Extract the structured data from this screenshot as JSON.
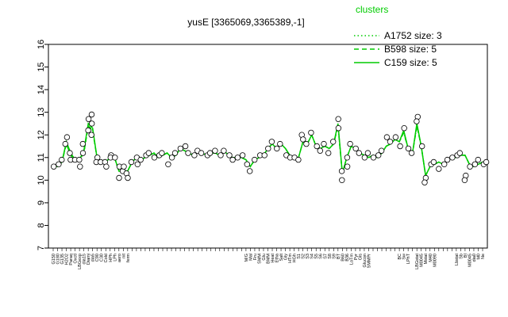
{
  "chart_data": {
    "type": "line",
    "title": "yusE [3365069,3365389,-1]",
    "xlabel": "",
    "ylabel": "",
    "ylim": [
      7,
      16
    ],
    "yticks": [
      7,
      8,
      9,
      10,
      11,
      12,
      13,
      14,
      15,
      16
    ],
    "grid": false,
    "legend": {
      "title": "clusters",
      "placement": "top-right",
      "color": "#00cc00",
      "entries": [
        {
          "label": "A1752 size: 3",
          "style": "dotted"
        },
        {
          "label": "B598 size: 5",
          "style": "dashed"
        },
        {
          "label": "C159 size: 5",
          "style": "solid"
        }
      ]
    },
    "x_tick_labels": [
      "G150",
      "G180",
      "G135",
      "H2O2",
      "Paraq",
      "Oxctl",
      "LBGexp",
      "dia15",
      "Diami",
      "dia5",
      "C90",
      "C30",
      "Cold",
      "HPh",
      "LPh",
      "aero",
      "nit",
      "ferm",
      "",
      "",
      "",
      "",
      "",
      "",
      "",
      "",
      "",
      "",
      "",
      "",
      "",
      "",
      "",
      "",
      "",
      "",
      "",
      "",
      "",
      "",
      "",
      "",
      "",
      "",
      "M/G",
      "Mal",
      "Fru",
      "SMM",
      "Glu",
      "BMM",
      "Heat",
      "Etha",
      "Salt",
      "Gly",
      "HTm",
      "HGh",
      "S1",
      "S2",
      "S3",
      "S4",
      "S5",
      "S6",
      "S7",
      "S8",
      "S9",
      "BT",
      "B60",
      "B36",
      "LoTm",
      "Pyr",
      "Gls",
      "Glucon",
      "SMMPr",
      "",
      "",
      "",
      "",
      "",
      "",
      "BC",
      "Sw",
      "LPhT",
      "",
      "LBGstat",
      "M0045",
      "Mstat",
      "M40",
      "M0090",
      "",
      "",
      "",
      "",
      "Lbstat",
      "Sb",
      "BI",
      "M0045",
      "dia0",
      "M0",
      "Ne"
    ],
    "series": [
      {
        "style": "solid",
        "color": "#00cc00",
        "values": [
          10.6,
          10.6,
          10.8,
          11.7,
          11.2,
          10.9,
          10.9,
          11.3,
          12.5,
          12.3,
          11.0,
          10.8,
          10.8,
          11.0,
          11.0,
          10.4,
          10.4,
          10.4,
          10.8,
          11.0,
          10.9,
          11.0,
          11.1,
          11.2,
          11.0,
          11.1,
          11.2,
          11.0,
          11.1,
          11.4,
          11.3,
          11.2,
          11.1,
          11.3,
          11.2,
          11.1,
          11.2,
          11.2,
          11.1,
          11.3,
          11.1,
          11.0,
          11.0,
          11.0,
          10.9,
          10.6,
          10.9,
          11.0,
          11.1,
          11.4,
          11.6,
          11.4,
          11.6,
          11.4,
          11.1,
          11.0,
          11.0,
          11.7,
          11.6,
          12.0,
          11.5,
          11.4,
          11.5,
          11.4,
          11.6,
          12.5,
          10.3,
          11.0,
          11.5,
          11.4,
          11.2,
          11.1,
          11.0,
          11.1,
          11.0,
          11.2,
          11.5,
          11.6,
          11.8,
          11.7,
          12.2,
          11.4,
          11.2,
          12.5,
          11.5,
          10.2,
          10.6,
          10.7,
          10.8,
          10.7,
          10.9,
          11.0,
          11.0,
          11.1,
          11.1,
          10.7,
          10.6,
          10.7,
          10.8,
          10.8
        ]
      },
      {
        "style": "dashed",
        "color": "#00cc00",
        "values": [
          10.6,
          10.6,
          10.8,
          11.6,
          11.1,
          10.9,
          10.9,
          11.2,
          12.4,
          12.2,
          11.0,
          10.8,
          10.8,
          11.0,
          11.0,
          10.4,
          10.4,
          10.4,
          10.8,
          11.0,
          10.9,
          11.0,
          11.1,
          11.2,
          11.0,
          11.1,
          11.2,
          11.0,
          11.1,
          11.4,
          11.3,
          11.2,
          11.1,
          11.3,
          11.2,
          11.1,
          11.2,
          11.2,
          11.1,
          11.3,
          11.1,
          11.0,
          11.0,
          11.0,
          10.9,
          10.6,
          10.9,
          11.0,
          11.1,
          11.4,
          11.6,
          11.4,
          11.6,
          11.4,
          11.1,
          11.0,
          11.0,
          11.7,
          11.6,
          12.0,
          11.5,
          11.4,
          11.5,
          11.4,
          11.6,
          12.4,
          10.3,
          11.0,
          11.5,
          11.4,
          11.2,
          11.1,
          11.0,
          11.1,
          11.0,
          11.2,
          11.5,
          11.6,
          11.8,
          11.7,
          12.1,
          11.4,
          11.2,
          12.4,
          11.5,
          10.2,
          10.6,
          10.7,
          10.8,
          10.7,
          10.9,
          11.0,
          11.0,
          11.1,
          11.1,
          10.7,
          10.6,
          10.7,
          10.8,
          10.8
        ]
      },
      {
        "style": "dotted",
        "color": "#00cc00",
        "values": [
          10.6,
          10.6,
          10.8,
          11.6,
          11.1,
          10.9,
          10.9,
          11.2,
          12.4,
          12.2,
          11.0,
          10.8,
          10.8,
          11.0,
          11.0,
          10.4,
          10.4,
          10.4,
          10.8,
          11.0,
          10.9,
          11.0,
          11.1,
          11.2,
          11.0,
          11.1,
          11.2,
          11.0,
          11.1,
          11.4,
          11.3,
          11.2,
          11.1,
          11.3,
          11.2,
          11.1,
          11.2,
          11.2,
          11.1,
          11.3,
          11.1,
          11.0,
          11.0,
          11.0,
          10.9,
          10.6,
          10.9,
          11.0,
          11.1,
          11.4,
          11.6,
          11.4,
          11.6,
          11.4,
          11.1,
          11.0,
          11.0,
          11.7,
          11.6,
          12.0,
          11.5,
          11.4,
          11.5,
          11.4,
          11.6,
          12.4,
          10.3,
          11.0,
          11.5,
          11.4,
          11.2,
          11.1,
          11.0,
          11.1,
          11.0,
          11.2,
          11.5,
          11.6,
          11.8,
          11.7,
          12.1,
          11.4,
          11.2,
          12.4,
          11.5,
          10.2,
          10.6,
          10.7,
          10.8,
          10.7,
          10.9,
          11.0,
          11.0,
          11.1,
          11.1,
          10.7,
          10.6,
          10.7,
          10.8,
          10.8
        ]
      }
    ],
    "points": [
      [
        0,
        10.6
      ],
      [
        1,
        10.7
      ],
      [
        2,
        10.9
      ],
      [
        3,
        11.9
      ],
      [
        3,
        11.6
      ],
      [
        4,
        11.2
      ],
      [
        4,
        10.9
      ],
      [
        5,
        10.9
      ],
      [
        6,
        10.6
      ],
      [
        6,
        10.9
      ],
      [
        7,
        11.6
      ],
      [
        7,
        11.2
      ],
      [
        8,
        12.7
      ],
      [
        8,
        12.2
      ],
      [
        9,
        12.9
      ],
      [
        9,
        12.5
      ],
      [
        9,
        12.0
      ],
      [
        10,
        11.0
      ],
      [
        10,
        10.8
      ],
      [
        11,
        10.8
      ],
      [
        12,
        10.8
      ],
      [
        12,
        10.6
      ],
      [
        13,
        11.1
      ],
      [
        13,
        11.0
      ],
      [
        14,
        11.0
      ],
      [
        15,
        10.6
      ],
      [
        15,
        10.1
      ],
      [
        16,
        10.4
      ],
      [
        16,
        10.6
      ],
      [
        17,
        10.3
      ],
      [
        17,
        10.1
      ],
      [
        18,
        10.8
      ],
      [
        19,
        11.0
      ],
      [
        19,
        10.7
      ],
      [
        20,
        10.9
      ],
      [
        21,
        11.1
      ],
      [
        22,
        11.2
      ],
      [
        23,
        11.0
      ],
      [
        24,
        11.1
      ],
      [
        25,
        11.2
      ],
      [
        26,
        10.7
      ],
      [
        27,
        11.0
      ],
      [
        28,
        11.2
      ],
      [
        29,
        11.4
      ],
      [
        30,
        11.5
      ],
      [
        31,
        11.2
      ],
      [
        32,
        11.1
      ],
      [
        33,
        11.3
      ],
      [
        34,
        11.2
      ],
      [
        35,
        11.1
      ],
      [
        36,
        11.2
      ],
      [
        37,
        11.3
      ],
      [
        38,
        11.1
      ],
      [
        39,
        11.3
      ],
      [
        40,
        11.1
      ],
      [
        41,
        10.9
      ],
      [
        42,
        11.0
      ],
      [
        43,
        11.1
      ],
      [
        44,
        10.7
      ],
      [
        45,
        10.4
      ],
      [
        46,
        10.9
      ],
      [
        47,
        11.1
      ],
      [
        48,
        11.1
      ],
      [
        49,
        11.4
      ],
      [
        50,
        11.7
      ],
      [
        51,
        11.4
      ],
      [
        52,
        11.6
      ],
      [
        53,
        11.1
      ],
      [
        54,
        11.0
      ],
      [
        55,
        11.0
      ],
      [
        56,
        10.9
      ],
      [
        57,
        12.0
      ],
      [
        57,
        11.8
      ],
      [
        58,
        11.6
      ],
      [
        59,
        12.1
      ],
      [
        60,
        11.5
      ],
      [
        61,
        11.3
      ],
      [
        62,
        11.6
      ],
      [
        63,
        11.2
      ],
      [
        64,
        11.7
      ],
      [
        65,
        12.7
      ],
      [
        65,
        12.3
      ],
      [
        66,
        10.0
      ],
      [
        66,
        10.4
      ],
      [
        67,
        11.0
      ],
      [
        67,
        10.6
      ],
      [
        68,
        11.6
      ],
      [
        69,
        11.4
      ],
      [
        70,
        11.2
      ],
      [
        71,
        11.0
      ],
      [
        72,
        11.2
      ],
      [
        73,
        11.0
      ],
      [
        74,
        11.1
      ],
      [
        75,
        11.3
      ],
      [
        76,
        11.9
      ],
      [
        77,
        11.7
      ],
      [
        78,
        11.9
      ],
      [
        79,
        11.5
      ],
      [
        80,
        12.3
      ],
      [
        81,
        11.4
      ],
      [
        82,
        11.2
      ],
      [
        83,
        12.8
      ],
      [
        83,
        12.6
      ],
      [
        84,
        11.5
      ],
      [
        85,
        10.1
      ],
      [
        85,
        9.9
      ],
      [
        86,
        10.7
      ],
      [
        87,
        10.8
      ],
      [
        88,
        10.5
      ],
      [
        89,
        10.7
      ],
      [
        90,
        10.9
      ],
      [
        91,
        11.0
      ],
      [
        92,
        11.1
      ],
      [
        93,
        11.2
      ],
      [
        94,
        10.2
      ],
      [
        94,
        10.0
      ],
      [
        95,
        10.6
      ],
      [
        96,
        10.7
      ],
      [
        97,
        10.9
      ],
      [
        98,
        10.7
      ],
      [
        99,
        10.8
      ]
    ]
  }
}
